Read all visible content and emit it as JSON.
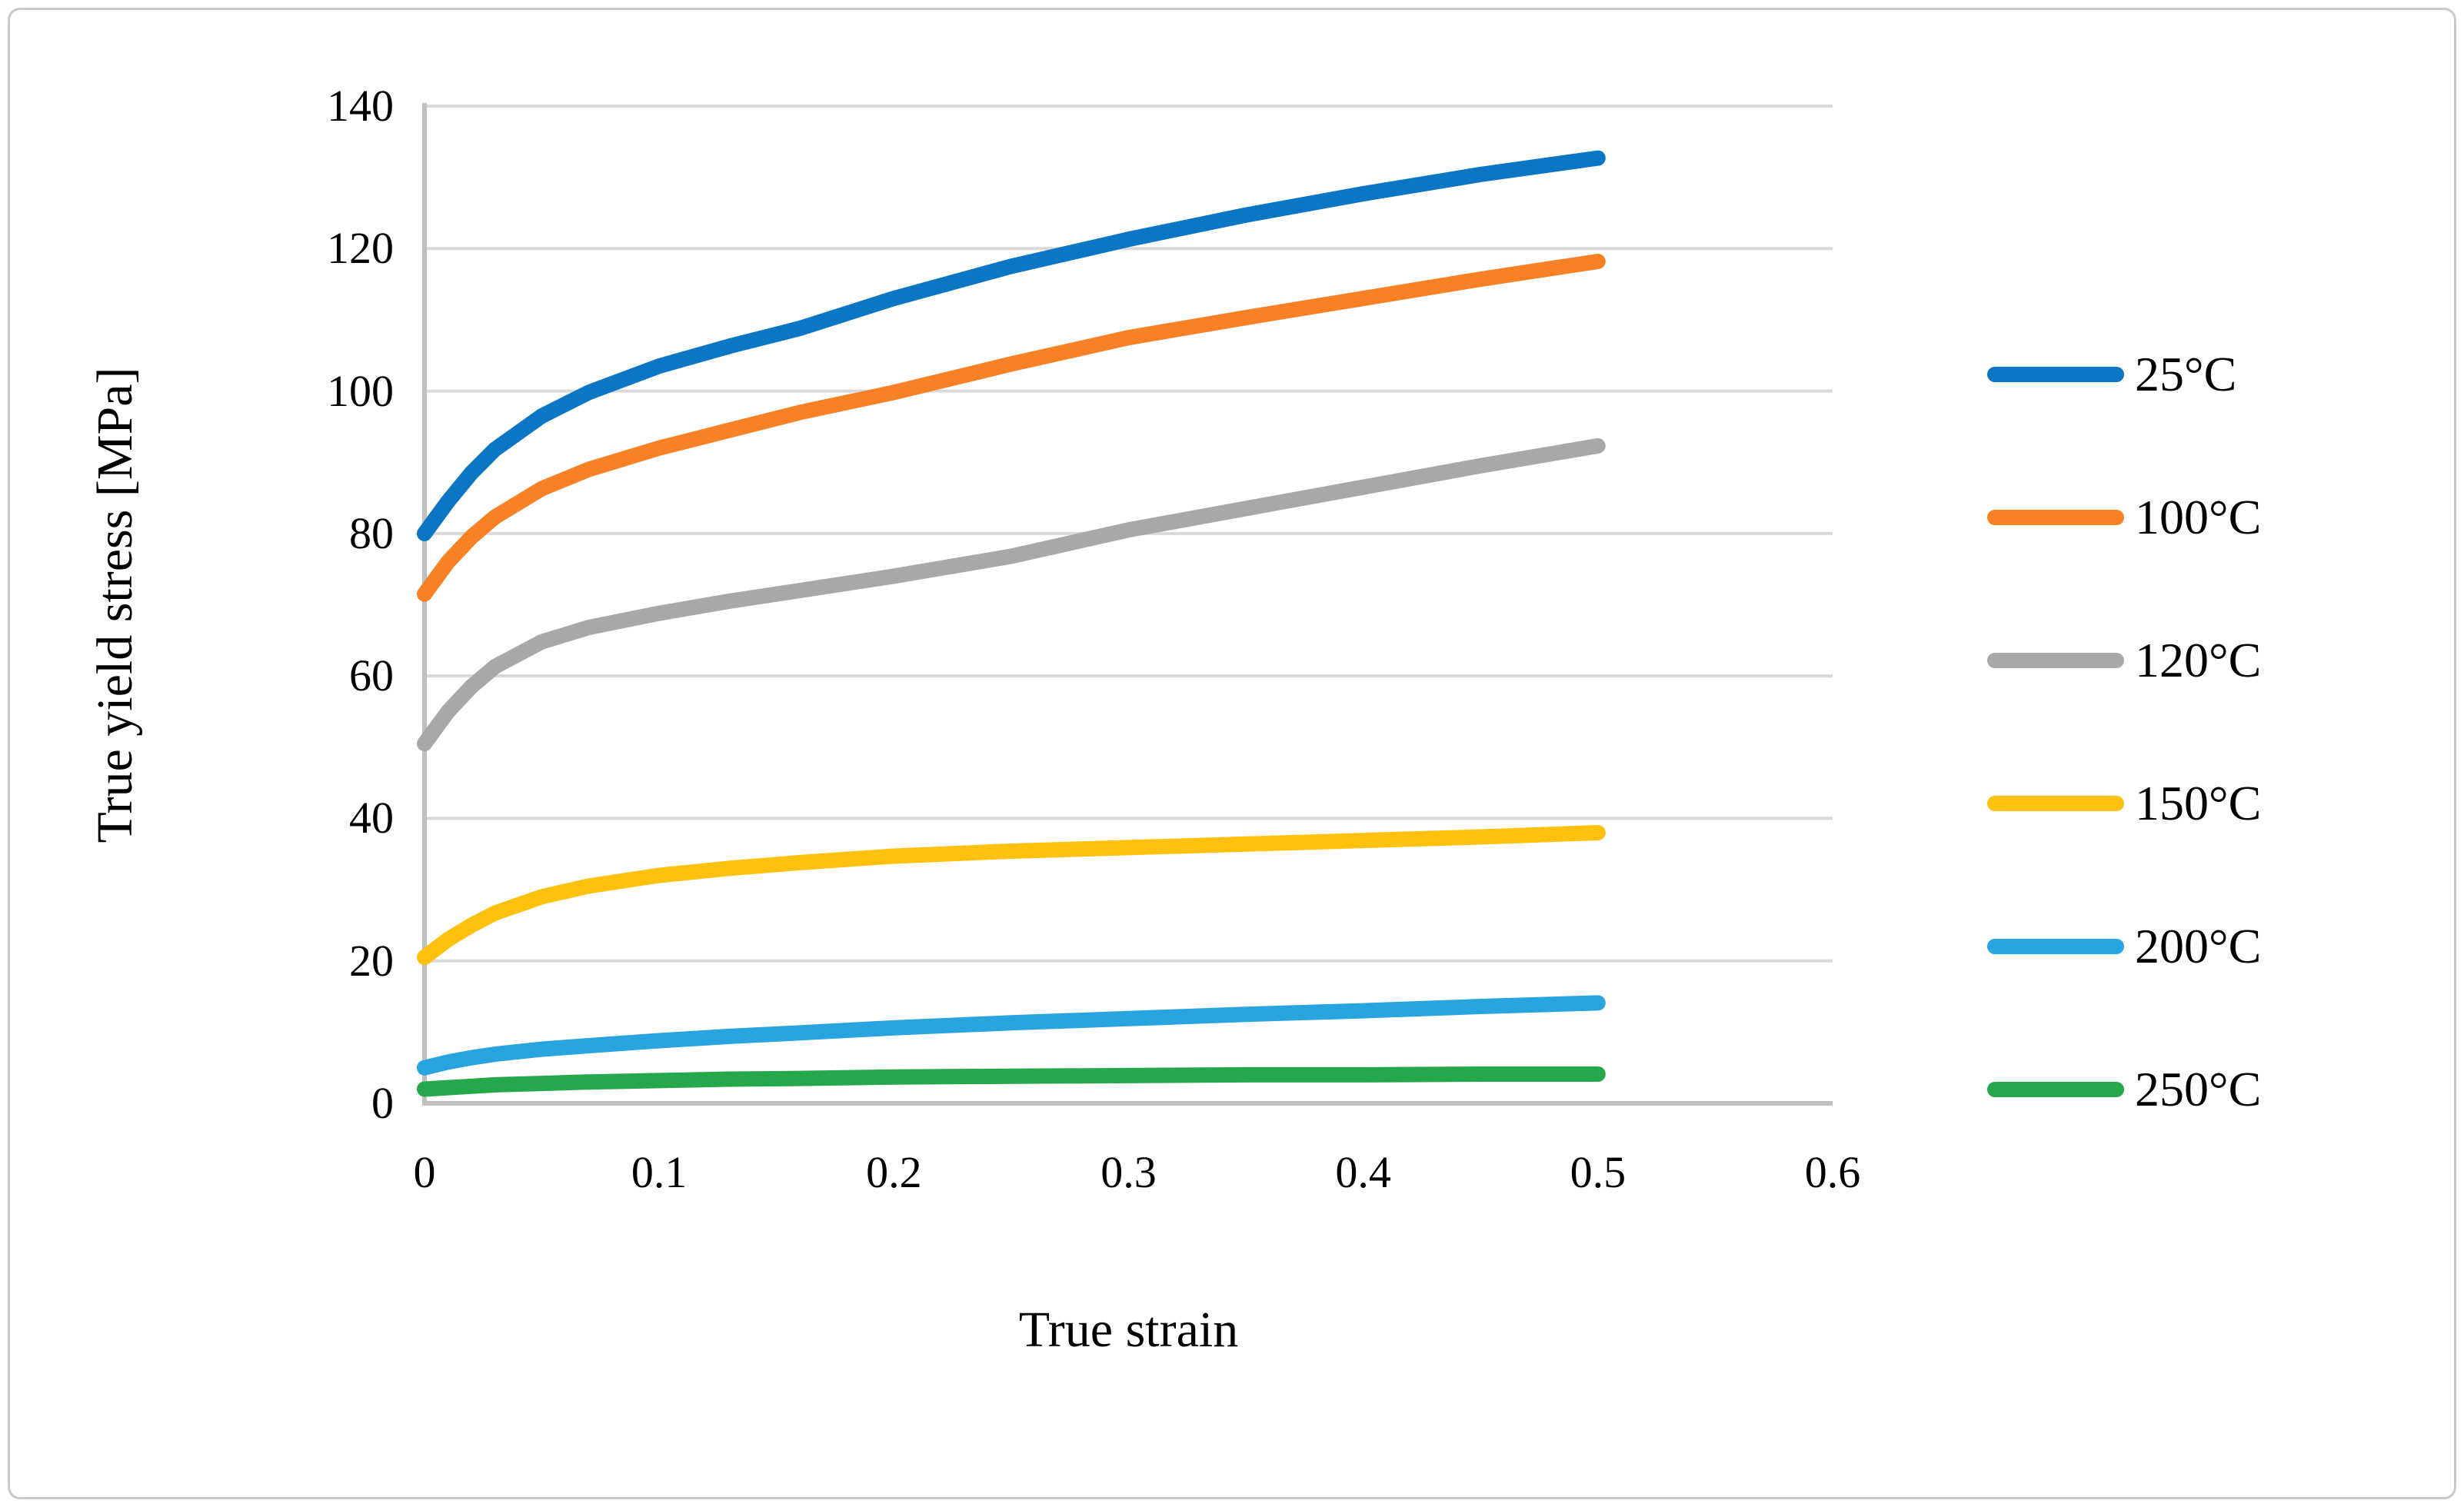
{
  "chart_data": {
    "type": "line",
    "title": "",
    "xlabel": "True strain",
    "ylabel": "True yield stress [MPa]",
    "xlim": [
      0,
      0.6
    ],
    "ylim": [
      0,
      140
    ],
    "x_ticks": [
      "0",
      "0.1",
      "0.2",
      "0.3",
      "0.4",
      "0.5",
      "0.6"
    ],
    "x_tick_values": [
      0,
      0.1,
      0.2,
      0.3,
      0.4,
      0.5,
      0.6
    ],
    "y_ticks": [
      "0",
      "20",
      "40",
      "60",
      "80",
      "100",
      "120",
      "140"
    ],
    "y_tick_values": [
      0,
      20,
      40,
      60,
      80,
      100,
      120,
      140
    ],
    "grid": "horizontal",
    "legend_position": "right",
    "x": [
      0,
      0.01,
      0.02,
      0.03,
      0.05,
      0.07,
      0.1,
      0.13,
      0.16,
      0.2,
      0.25,
      0.3,
      0.35,
      0.4,
      0.45,
      0.5
    ],
    "series": [
      {
        "name": "25°C",
        "color": "#0b76c4",
        "values": [
          80,
          84.5,
          88.5,
          91.8,
          96.5,
          99.8,
          103.5,
          106.3,
          108.8,
          113,
          117.5,
          121.3,
          124.7,
          127.7,
          130.4,
          132.7
        ]
      },
      {
        "name": "100°C",
        "color": "#f98125",
        "values": [
          71.5,
          76,
          79.5,
          82.3,
          86.3,
          89,
          92,
          94.5,
          97,
          99.8,
          103.8,
          107.5,
          110.3,
          113,
          115.7,
          118.2
        ]
      },
      {
        "name": "120°C",
        "color": "#a8a8a8",
        "values": [
          50.5,
          55,
          58.5,
          61.3,
          64.8,
          66.8,
          68.8,
          70.5,
          72,
          74,
          76.8,
          80.5,
          83.5,
          86.5,
          89.5,
          92.3
        ]
      },
      {
        "name": "150°C",
        "color": "#fec10d",
        "values": [
          20.5,
          23,
          25,
          26.7,
          29,
          30.5,
          32,
          33,
          33.8,
          34.7,
          35.4,
          35.9,
          36.4,
          36.9,
          37.4,
          38
        ]
      },
      {
        "name": "200°C",
        "color": "#28a4de",
        "values": [
          5,
          5.8,
          6.4,
          6.9,
          7.6,
          8.1,
          8.8,
          9.4,
          9.9,
          10.6,
          11.3,
          11.9,
          12.5,
          13,
          13.6,
          14.1
        ]
      },
      {
        "name": "250°C",
        "color": "#25a84b",
        "values": [
          2,
          2.2,
          2.4,
          2.6,
          2.8,
          3.0,
          3.2,
          3.4,
          3.5,
          3.7,
          3.8,
          3.9,
          4.0,
          4.0,
          4.1,
          4.1
        ]
      }
    ],
    "colors": {
      "gridline": "#d9d9d9",
      "axis_line": "#bfbfbf",
      "text": "#000000",
      "background": "#ffffff",
      "figure_border": "#c9c9c9"
    }
  }
}
